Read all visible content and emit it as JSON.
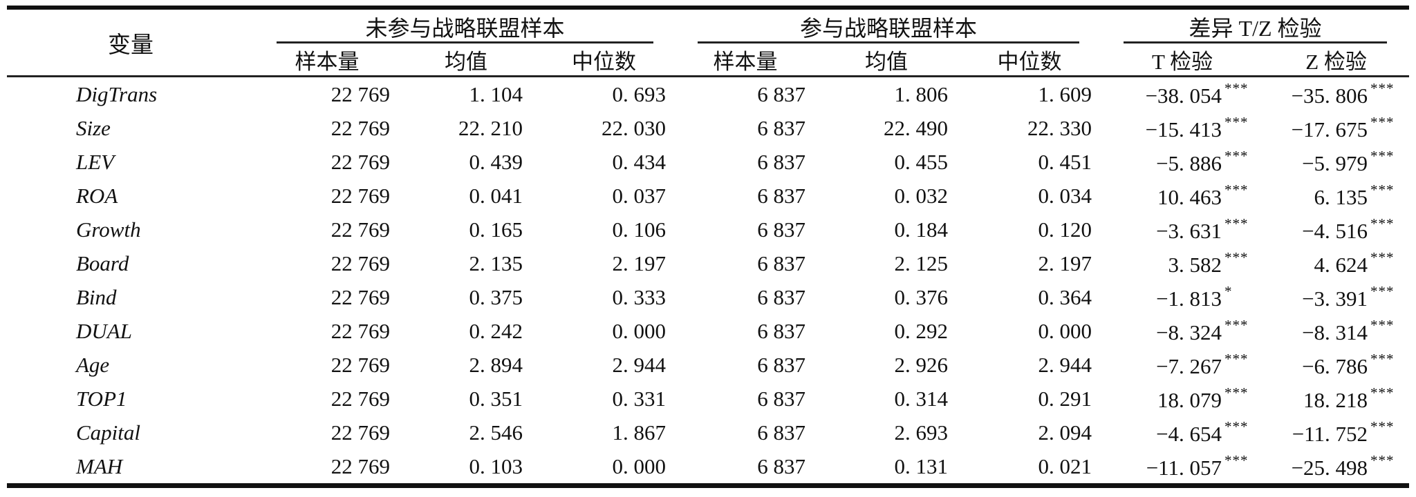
{
  "table": {
    "header": {
      "variable_label": "变量",
      "groups": [
        {
          "label": "未参与战略联盟样本",
          "sub": [
            "样本量",
            "均值",
            "中位数"
          ]
        },
        {
          "label": "参与战略联盟样本",
          "sub": [
            "样本量",
            "均值",
            "中位数"
          ]
        },
        {
          "label": "差异 T/Z 检验",
          "sub": [
            "T 检验",
            "Z 检验"
          ]
        }
      ]
    },
    "rows": [
      {
        "variable": "DigTrans",
        "values": [
          "22 769",
          "1. 104",
          "0. 693",
          "6 837",
          "1. 806",
          "1. 609"
        ],
        "t": {
          "value": "−38. 054",
          "stars": "***"
        },
        "z": {
          "value": "−35. 806",
          "stars": "***"
        }
      },
      {
        "variable": "Size",
        "values": [
          "22 769",
          "22. 210",
          "22. 030",
          "6 837",
          "22. 490",
          "22. 330"
        ],
        "t": {
          "value": "−15. 413",
          "stars": "***"
        },
        "z": {
          "value": "−17. 675",
          "stars": "***"
        }
      },
      {
        "variable": "LEV",
        "values": [
          "22 769",
          "0. 439",
          "0. 434",
          "6 837",
          "0. 455",
          "0. 451"
        ],
        "t": {
          "value": "−5. 886",
          "stars": "***"
        },
        "z": {
          "value": "−5. 979",
          "stars": "***"
        }
      },
      {
        "variable": "ROA",
        "values": [
          "22 769",
          "0. 041",
          "0. 037",
          "6 837",
          "0. 032",
          "0. 034"
        ],
        "t": {
          "value": "10. 463",
          "stars": "***"
        },
        "z": {
          "value": "6. 135",
          "stars": "***"
        }
      },
      {
        "variable": "Growth",
        "values": [
          "22 769",
          "0. 165",
          "0. 106",
          "6 837",
          "0. 184",
          "0. 120"
        ],
        "t": {
          "value": "−3. 631",
          "stars": "***"
        },
        "z": {
          "value": "−4. 516",
          "stars": "***"
        }
      },
      {
        "variable": "Board",
        "values": [
          "22 769",
          "2. 135",
          "2. 197",
          "6 837",
          "2. 125",
          "2. 197"
        ],
        "t": {
          "value": "3. 582",
          "stars": "***"
        },
        "z": {
          "value": "4. 624",
          "stars": "***"
        }
      },
      {
        "variable": "Bind",
        "values": [
          "22 769",
          "0. 375",
          "0. 333",
          "6 837",
          "0. 376",
          "0. 364"
        ],
        "t": {
          "value": "−1. 813",
          "stars": "*"
        },
        "z": {
          "value": "−3. 391",
          "stars": "***"
        }
      },
      {
        "variable": "DUAL",
        "values": [
          "22 769",
          "0. 242",
          "0. 000",
          "6 837",
          "0. 292",
          "0. 000"
        ],
        "t": {
          "value": "−8. 324",
          "stars": "***"
        },
        "z": {
          "value": "−8. 314",
          "stars": "***"
        }
      },
      {
        "variable": "Age",
        "values": [
          "22 769",
          "2. 894",
          "2. 944",
          "6 837",
          "2. 926",
          "2. 944"
        ],
        "t": {
          "value": "−7. 267",
          "stars": "***"
        },
        "z": {
          "value": "−6. 786",
          "stars": "***"
        }
      },
      {
        "variable": "TOP1",
        "values": [
          "22 769",
          "0. 351",
          "0. 331",
          "6 837",
          "0. 314",
          "0. 291"
        ],
        "t": {
          "value": "18. 079",
          "stars": "***"
        },
        "z": {
          "value": "18. 218",
          "stars": "***"
        }
      },
      {
        "variable": "Capital",
        "values": [
          "22 769",
          "2. 546",
          "1. 867",
          "6 837",
          "2. 693",
          "2. 094"
        ],
        "t": {
          "value": "−4. 654",
          "stars": "***"
        },
        "z": {
          "value": "−11. 752",
          "stars": "***"
        }
      },
      {
        "variable": "MAH",
        "values": [
          "22 769",
          "0. 103",
          "0. 000",
          "6 837",
          "0. 131",
          "0. 021"
        ],
        "t": {
          "value": "−11. 057",
          "stars": "***"
        },
        "z": {
          "value": "−25. 498",
          "stars": "***"
        }
      }
    ]
  }
}
